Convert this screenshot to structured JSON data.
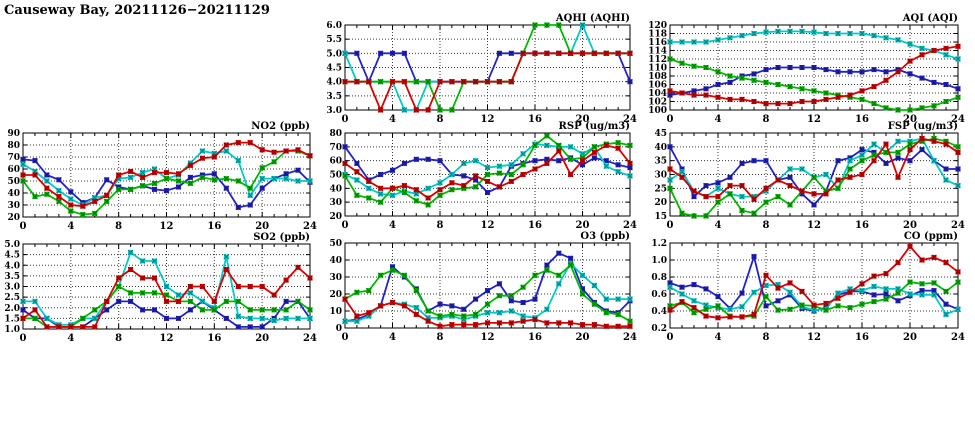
{
  "page_title": "Causeway Bay, 20211126−20211129",
  "x_hours": [
    0,
    1,
    2,
    3,
    4,
    5,
    6,
    7,
    8,
    9,
    10,
    11,
    12,
    13,
    14,
    15,
    16,
    17,
    18,
    19,
    20,
    21,
    22,
    23,
    24
  ],
  "x_axis": {
    "xlim": [
      0,
      24
    ],
    "xticks": [
      0,
      4,
      8,
      12,
      16,
      20,
      24
    ],
    "minor_tick_every": 1
  },
  "series_colors": {
    "blue": "#2222cc",
    "cyan": "#00cccc",
    "green": "#00bb00",
    "red": "#dd0000"
  },
  "chart_data": [
    {
      "id": "aqhi",
      "type": "line",
      "title": "AQHI (AQHI)",
      "ylim": [
        3.0,
        6.0
      ],
      "ystep": 0.5,
      "ydecimals": 1,
      "grid": true,
      "legend": "none",
      "series": [
        {
          "name": "blue",
          "color": "#2222cc",
          "values": [
            5,
            5,
            4,
            5,
            5,
            5,
            4,
            4,
            4,
            4,
            4,
            4,
            4,
            5,
            5,
            5,
            5,
            5,
            5,
            5,
            5,
            5,
            5,
            5,
            4
          ]
        },
        {
          "name": "cyan",
          "color": "#00cccc",
          "values": [
            5,
            4,
            4,
            4,
            4,
            3,
            3,
            4,
            4,
            4,
            4,
            4,
            4,
            4,
            4,
            5,
            5,
            5,
            5,
            5,
            6,
            5,
            5,
            5,
            5
          ]
        },
        {
          "name": "green",
          "color": "#00bb00",
          "values": [
            4,
            4,
            4,
            4,
            4,
            4,
            4,
            4,
            3,
            3,
            4,
            4,
            4,
            4,
            4,
            5,
            6,
            6,
            6,
            5,
            5,
            5,
            5,
            5,
            5
          ]
        },
        {
          "name": "red",
          "color": "#dd0000",
          "values": [
            4,
            4,
            4,
            3,
            4,
            4,
            3,
            3,
            4,
            4,
            4,
            4,
            4,
            4,
            4,
            5,
            5,
            5,
            5,
            5,
            5,
            5,
            5,
            5,
            5
          ]
        }
      ]
    },
    {
      "id": "aqi",
      "type": "line",
      "title": "AQI (AQI)",
      "ylim": [
        100,
        120
      ],
      "ystep": 2,
      "ydecimals": 0,
      "grid": true,
      "legend": "none",
      "series": [
        {
          "name": "blue",
          "color": "#2222cc",
          "values": [
            103.5,
            104,
            104.5,
            105,
            106,
            106.5,
            108,
            108.5,
            109.5,
            110,
            110,
            110,
            110,
            109.5,
            109,
            109,
            109,
            109.5,
            109,
            109.5,
            108.5,
            107.5,
            106.5,
            106,
            105
          ]
        },
        {
          "name": "cyan",
          "color": "#00cccc",
          "values": [
            116,
            116,
            116,
            116,
            116.5,
            117,
            117.5,
            118,
            118.3,
            118.5,
            118.5,
            118.5,
            118.3,
            118,
            118,
            118,
            118,
            117.5,
            117,
            116.5,
            115.5,
            114.5,
            114,
            113,
            112
          ]
        },
        {
          "name": "green",
          "color": "#00bb00",
          "values": [
            112,
            111,
            110.3,
            110,
            109,
            108,
            107.5,
            107,
            106.5,
            106,
            105.5,
            105,
            104.5,
            104,
            103.5,
            103,
            102.5,
            101.5,
            100.5,
            100,
            100,
            100.5,
            101,
            102,
            103
          ]
        },
        {
          "name": "red",
          "color": "#dd0000",
          "values": [
            104.5,
            104,
            103.5,
            103.5,
            103,
            102.5,
            102.5,
            102,
            101.5,
            101.5,
            101.5,
            102,
            102,
            102.5,
            103,
            103.5,
            104.5,
            105.5,
            107,
            109,
            111.5,
            113,
            114,
            114.5,
            115
          ]
        }
      ]
    },
    {
      "id": "no2",
      "type": "line",
      "title": "NO2 (ppb)",
      "ylim": [
        20,
        90
      ],
      "ystep": 10,
      "ydecimals": 0,
      "grid": true,
      "legend": "none",
      "series": [
        {
          "name": "blue",
          "color": "#2222cc",
          "values": [
            68,
            67,
            55,
            51,
            41,
            32,
            36,
            51,
            45,
            43,
            46,
            43,
            42,
            45,
            53,
            55,
            56,
            44,
            28,
            30,
            44,
            52,
            56,
            59,
            49
          ]
        },
        {
          "name": "cyan",
          "color": "#00cccc",
          "values": [
            64,
            58,
            50,
            42,
            35,
            30,
            36,
            38,
            52,
            53,
            57,
            60,
            52,
            55,
            65,
            75,
            73,
            75,
            67,
            38,
            52,
            52,
            52,
            50,
            50
          ]
        },
        {
          "name": "green",
          "color": "#00bb00",
          "values": [
            50,
            37,
            39,
            33,
            25,
            22,
            23,
            33,
            43,
            43,
            46,
            48,
            52,
            50,
            48,
            53,
            51,
            52,
            50,
            44,
            61,
            66,
            75,
            75,
            71
          ]
        },
        {
          "name": "red",
          "color": "#dd0000",
          "values": [
            55,
            55,
            44,
            37,
            30,
            29,
            33,
            38,
            55,
            58,
            53,
            57,
            57,
            56,
            63,
            69,
            70,
            80,
            82,
            82,
            76,
            74,
            75,
            76,
            71
          ]
        }
      ]
    },
    {
      "id": "rsp",
      "type": "line",
      "title": "RSP (ug/m3)",
      "ylim": [
        20,
        80
      ],
      "ystep": 10,
      "ydecimals": 0,
      "grid": true,
      "legend": "none",
      "series": [
        {
          "name": "blue",
          "color": "#2222cc",
          "values": [
            70,
            58,
            46,
            50,
            53,
            58,
            61,
            61,
            60,
            50,
            49,
            46,
            37,
            41,
            56,
            58,
            60,
            61,
            60,
            62,
            57,
            62,
            60,
            57,
            55
          ]
        },
        {
          "name": "cyan",
          "color": "#00cccc",
          "values": [
            50,
            46,
            40,
            36,
            35,
            38,
            36,
            40,
            44,
            50,
            58,
            60,
            55,
            56,
            57,
            65,
            72,
            71,
            70,
            70,
            65,
            70,
            56,
            52,
            49
          ]
        },
        {
          "name": "green",
          "color": "#00bb00",
          "values": [
            49,
            35,
            33,
            30,
            40,
            37,
            31,
            28,
            35,
            39,
            40,
            41,
            50,
            51,
            50,
            57,
            71,
            78,
            71,
            61,
            62,
            70,
            72,
            73,
            71
          ]
        },
        {
          "name": "red",
          "color": "#dd0000",
          "values": [
            58,
            52,
            45,
            40,
            40,
            42,
            39,
            33,
            39,
            44,
            42,
            49,
            45,
            41,
            45,
            50,
            54,
            58,
            67,
            50,
            60,
            66,
            71,
            69,
            58
          ]
        }
      ]
    },
    {
      "id": "fsp",
      "type": "line",
      "title": "FSP (ug/m3)",
      "ylim": [
        15,
        45
      ],
      "ystep": 5,
      "ydecimals": 0,
      "grid": true,
      "legend": "none",
      "series": [
        {
          "name": "blue",
          "color": "#2222cc",
          "values": [
            40,
            32,
            22,
            26,
            27,
            29,
            34,
            35,
            35,
            28,
            29,
            23,
            19,
            24,
            35,
            36,
            39,
            38,
            34,
            36,
            35,
            39,
            35,
            32,
            32
          ]
        },
        {
          "name": "cyan",
          "color": "#00cccc",
          "values": [
            28,
            31,
            24,
            22,
            25,
            23,
            22,
            22,
            24,
            28,
            32,
            32,
            29,
            30,
            25,
            35,
            37,
            41,
            38,
            42,
            42,
            43,
            35,
            28,
            26
          ]
        },
        {
          "name": "green",
          "color": "#00bb00",
          "values": [
            25,
            16,
            15,
            15,
            20,
            23,
            17,
            16,
            20,
            22,
            19,
            24,
            29,
            24,
            25,
            32,
            35,
            37,
            38,
            38,
            41,
            42,
            43,
            42,
            40
          ]
        },
        {
          "name": "red",
          "color": "#dd0000",
          "values": [
            32,
            29,
            24,
            22,
            22,
            26,
            26,
            21,
            25,
            28,
            26,
            24,
            23,
            23,
            28,
            29,
            30,
            35,
            41,
            29,
            39,
            43,
            42,
            41,
            38
          ]
        }
      ]
    },
    {
      "id": "so2",
      "type": "line",
      "title": "SO2 (ppb)",
      "ylim": [
        1.0,
        5.0
      ],
      "ystep": 0.5,
      "ydecimals": 1,
      "grid": true,
      "legend": "none",
      "series": [
        {
          "name": "blue",
          "color": "#2222cc",
          "values": [
            1.9,
            1.5,
            1.5,
            1.1,
            1.1,
            1.1,
            1.5,
            1.9,
            2.3,
            2.3,
            1.9,
            1.9,
            1.5,
            1.5,
            1.9,
            2.3,
            1.9,
            1.5,
            1.1,
            1.1,
            1.1,
            1.5,
            2.3,
            2.3,
            1.5
          ]
        },
        {
          "name": "cyan",
          "color": "#00cccc",
          "values": [
            2.3,
            2.3,
            1.5,
            1.2,
            1.2,
            1.5,
            1.5,
            2.3,
            3.0,
            4.6,
            4.2,
            4.2,
            3.0,
            2.6,
            2.7,
            2.3,
            2.0,
            4.4,
            1.6,
            1.5,
            1.5,
            1.4,
            1.5,
            1.5,
            1.5
          ]
        },
        {
          "name": "green",
          "color": "#00bb00",
          "values": [
            1.5,
            1.5,
            1.1,
            1.1,
            1.1,
            1.5,
            1.9,
            2.3,
            3.0,
            2.7,
            2.7,
            2.7,
            2.6,
            2.3,
            2.3,
            1.9,
            1.9,
            2.3,
            2.3,
            1.9,
            1.9,
            1.9,
            1.9,
            2.3,
            1.9
          ]
        },
        {
          "name": "red",
          "color": "#dd0000",
          "values": [
            1.5,
            1.9,
            1.1,
            1.1,
            1.1,
            1.1,
            1.1,
            2.3,
            3.4,
            3.8,
            3.4,
            3.4,
            2.3,
            2.3,
            3.0,
            3.0,
            2.3,
            3.8,
            3.0,
            3.0,
            3.0,
            2.6,
            3.3,
            3.9,
            3.4
          ]
        }
      ]
    },
    {
      "id": "o3",
      "type": "line",
      "title": "O3 (ppb)",
      "ylim": [
        0,
        50
      ],
      "ystep": 10,
      "ydecimals": 0,
      "grid": true,
      "legend": "none",
      "series": [
        {
          "name": "blue",
          "color": "#2222cc",
          "values": [
            4,
            5,
            8,
            13,
            36,
            30,
            23,
            10,
            14,
            13,
            11,
            17,
            22,
            26,
            16,
            15,
            17,
            37,
            44,
            41,
            23,
            15,
            10,
            9,
            16
          ]
        },
        {
          "name": "cyan",
          "color": "#00cccc",
          "values": [
            4,
            4,
            7,
            13,
            15,
            14,
            12,
            6,
            6,
            7,
            5,
            7,
            9,
            9,
            10,
            7,
            6,
            11,
            26,
            38,
            31,
            25,
            17,
            17,
            17
          ]
        },
        {
          "name": "green",
          "color": "#00bb00",
          "values": [
            17,
            21,
            22,
            31,
            34,
            31,
            22,
            10,
            7,
            8,
            7,
            8,
            14,
            19,
            19,
            24,
            31,
            34,
            31,
            37,
            20,
            14,
            9,
            8,
            4
          ]
        },
        {
          "name": "red",
          "color": "#dd0000",
          "values": [
            17,
            7,
            9,
            13,
            15,
            13,
            8,
            4,
            1,
            2,
            2,
            2,
            3,
            3,
            3,
            4,
            5,
            3,
            3,
            3,
            2,
            2,
            1,
            1,
            1
          ]
        }
      ]
    },
    {
      "id": "co",
      "type": "line",
      "title": "CO (ppm)",
      "ylim": [
        0.2,
        1.2
      ],
      "ystep": 0.2,
      "ydecimals": 1,
      "grid": true,
      "legend": "none",
      "series": [
        {
          "name": "blue",
          "color": "#2222cc",
          "values": [
            0.73,
            0.68,
            0.71,
            0.66,
            0.57,
            0.43,
            0.61,
            1.04,
            0.46,
            0.52,
            0.59,
            0.43,
            0.4,
            0.44,
            0.59,
            0.63,
            0.63,
            0.59,
            0.6,
            0.52,
            0.58,
            0.64,
            0.64,
            0.48,
            0.42
          ]
        },
        {
          "name": "cyan",
          "color": "#00cccc",
          "values": [
            0.68,
            0.6,
            0.52,
            0.47,
            0.44,
            0.42,
            0.45,
            0.62,
            0.7,
            0.71,
            0.62,
            0.45,
            0.41,
            0.42,
            0.61,
            0.66,
            0.64,
            0.69,
            0.66,
            0.66,
            0.6,
            0.59,
            0.59,
            0.36,
            0.42
          ]
        },
        {
          "name": "green",
          "color": "#00bb00",
          "values": [
            0.46,
            0.5,
            0.38,
            0.42,
            0.46,
            0.34,
            0.33,
            0.34,
            0.57,
            0.41,
            0.42,
            0.47,
            0.46,
            0.41,
            0.46,
            0.44,
            0.48,
            0.51,
            0.54,
            0.61,
            0.74,
            0.72,
            0.73,
            0.63,
            0.74
          ]
        },
        {
          "name": "red",
          "color": "#dd0000",
          "values": [
            0.41,
            0.51,
            0.44,
            0.34,
            0.32,
            0.33,
            0.33,
            0.36,
            0.82,
            0.67,
            0.73,
            0.63,
            0.47,
            0.49,
            0.55,
            0.62,
            0.72,
            0.81,
            0.84,
            0.97,
            1.16,
            1.0,
            1.03,
            0.97,
            0.86
          ]
        }
      ]
    }
  ]
}
